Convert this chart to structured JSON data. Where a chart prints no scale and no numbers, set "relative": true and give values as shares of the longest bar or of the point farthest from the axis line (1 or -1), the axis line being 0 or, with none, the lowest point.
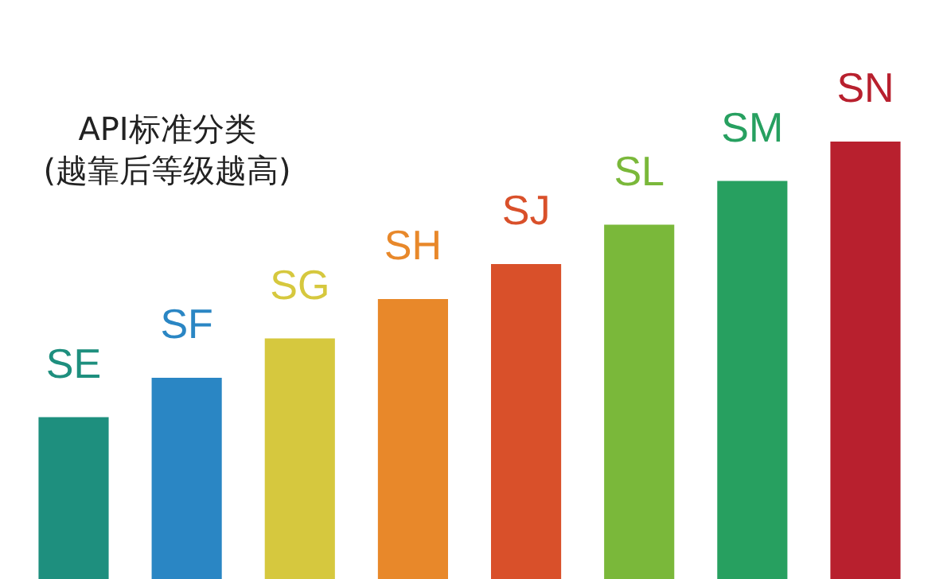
{
  "chart_data": {
    "type": "bar",
    "title": "API标准分类\n(越靠后等级越高)",
    "relative": true,
    "categories": [
      "SE",
      "SF",
      "SG",
      "SH",
      "SJ",
      "SL",
      "SM",
      "SN"
    ],
    "values": [
      0.37,
      0.46,
      0.55,
      0.64,
      0.72,
      0.81,
      0.91,
      1
    ],
    "colors": [
      "#1e8f7e",
      "#2a86c4",
      "#d6c83e",
      "#e8882a",
      "#d9502a",
      "#7ab83a",
      "#27a060",
      "#b8202e"
    ]
  }
}
